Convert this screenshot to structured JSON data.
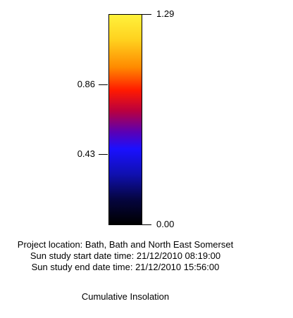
{
  "legend": {
    "ticks": [
      {
        "value": 1.29,
        "label": "1.29"
      },
      {
        "value": 0.86,
        "label": "0.86"
      },
      {
        "value": 0.43,
        "label": "0.43"
      },
      {
        "value": 0.0,
        "label": "0.00"
      }
    ],
    "range": [
      0.0,
      1.29
    ],
    "gradient_colors": [
      {
        "stop": 0.0,
        "color": "#fff23c"
      },
      {
        "stop": 0.12,
        "color": "#ffd11e"
      },
      {
        "stop": 0.25,
        "color": "#ff8a00"
      },
      {
        "stop": 0.36,
        "color": "#ff1a00"
      },
      {
        "stop": 0.46,
        "color": "#b80040"
      },
      {
        "stop": 0.56,
        "color": "#5a00b5"
      },
      {
        "stop": 0.64,
        "color": "#1a10ff"
      },
      {
        "stop": 0.76,
        "color": "#1010b0"
      },
      {
        "stop": 0.88,
        "color": "#050540"
      },
      {
        "stop": 1.0,
        "color": "#000000"
      }
    ]
  },
  "info": {
    "project_location": "Project location: Bath, Bath and North East Somerset",
    "start_time": "Sun study start date time: 21/12/2010 08:19:00",
    "end_time": "Sun study end date time: 21/12/2010 15:56:00"
  },
  "title": "Cumulative Insolation"
}
